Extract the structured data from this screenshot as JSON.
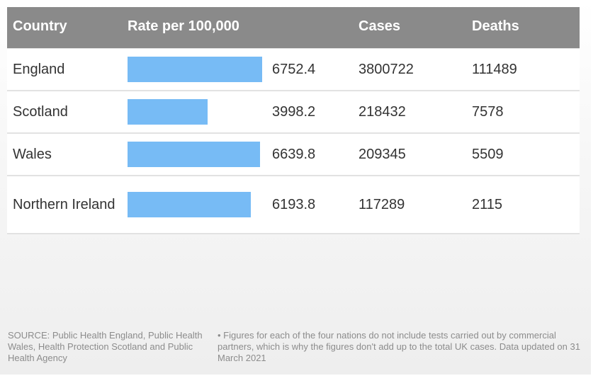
{
  "chart_data": {
    "type": "table",
    "columns": [
      "Country",
      "Rate per 100,000",
      "Cases",
      "Deaths"
    ],
    "rows": [
      {
        "country": "England",
        "rate": 6752.4,
        "rate_label": "6752.4",
        "cases": "3800722",
        "deaths": "111489"
      },
      {
        "country": "Scotland",
        "rate": 3998.2,
        "rate_label": "3998.2",
        "cases": "218432",
        "deaths": "7578"
      },
      {
        "country": "Wales",
        "rate": 6639.8,
        "rate_label": "6639.8",
        "cases": "209345",
        "deaths": "5509"
      },
      {
        "country": "Northern Ireland",
        "rate": 6193.8,
        "rate_label": "6193.8",
        "cases": "117289",
        "deaths": "2115"
      }
    ],
    "bar_color": "#77bbf5",
    "header_color": "#8a8a8a"
  },
  "footer": {
    "source": "SOURCE: Public Health England, Public Health Wales, Health Protection Scotland and Public Health Agency",
    "note": "• Figures for each of the four nations do not include tests carried out by commercial partners, which is why the figures don't add up to the total UK cases. Data updated on 31 March 2021"
  }
}
